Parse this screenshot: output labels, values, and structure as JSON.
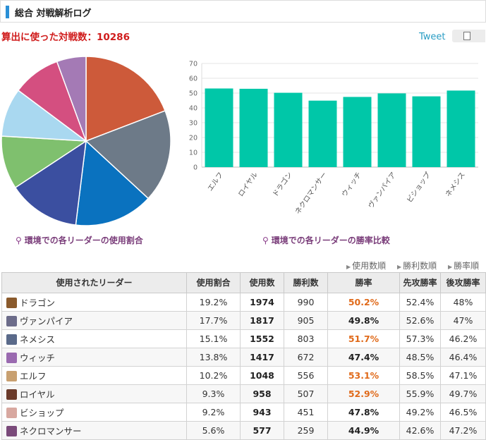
{
  "header": {
    "title": "総合 対戦解析ログ"
  },
  "battle_count_label": "算出に使った対戦数：10286",
  "social": {
    "tweet": "Tweet"
  },
  "pie_caption": "環境での各リーダーの使用割合",
  "bar_caption": "環境での各リーダーの勝率比較",
  "sort": [
    "使用数順",
    "勝利数順",
    "勝率順"
  ],
  "table": {
    "headers": [
      "使用されたリーダー",
      "使用割合",
      "使用数",
      "勝利数",
      "勝率",
      "先攻勝率",
      "後攻勝率"
    ],
    "rows": [
      {
        "leader": "ドラゴン",
        "share": "19.2%",
        "count": "1974",
        "wins": "990",
        "rate": "50.2%",
        "hi": true,
        "first": "52.4%",
        "second": "48%",
        "color": "#8a5a2c"
      },
      {
        "leader": "ヴァンパイア",
        "share": "17.7%",
        "count": "1817",
        "wins": "905",
        "rate": "49.8%",
        "hi": false,
        "first": "52.6%",
        "second": "47%",
        "color": "#6c6c8a"
      },
      {
        "leader": "ネメシス",
        "share": "15.1%",
        "count": "1552",
        "wins": "803",
        "rate": "51.7%",
        "hi": true,
        "first": "57.3%",
        "second": "46.2%",
        "color": "#5a6a8a"
      },
      {
        "leader": "ウィッチ",
        "share": "13.8%",
        "count": "1417",
        "wins": "672",
        "rate": "47.4%",
        "hi": false,
        "first": "48.5%",
        "second": "46.4%",
        "color": "#9a6ab0"
      },
      {
        "leader": "エルフ",
        "share": "10.2%",
        "count": "1048",
        "wins": "556",
        "rate": "53.1%",
        "hi": true,
        "first": "58.5%",
        "second": "47.1%",
        "color": "#c8a070"
      },
      {
        "leader": "ロイヤル",
        "share": "9.3%",
        "count": "958",
        "wins": "507",
        "rate": "52.9%",
        "hi": true,
        "first": "55.9%",
        "second": "49.7%",
        "color": "#6a3a2a"
      },
      {
        "leader": "ビショップ",
        "share": "9.2%",
        "count": "943",
        "wins": "451",
        "rate": "47.8%",
        "hi": false,
        "first": "49.2%",
        "second": "46.5%",
        "color": "#d8a8a0"
      },
      {
        "leader": "ネクロマンサー",
        "share": "5.6%",
        "count": "577",
        "wins": "259",
        "rate": "44.9%",
        "hi": false,
        "first": "42.6%",
        "second": "47.2%",
        "color": "#7a4a7a"
      }
    ]
  },
  "chart_data": [
    {
      "type": "pie",
      "categories": [
        "ドラゴン",
        "ヴァンパイア",
        "ネメシス",
        "ウィッチ",
        "エルフ",
        "ロイヤル",
        "ビショップ",
        "ネクロマンサー"
      ],
      "values": [
        19.2,
        17.7,
        15.1,
        13.8,
        10.2,
        9.3,
        9.2,
        5.6
      ],
      "colors": [
        "#cd5a3a",
        "#6d7a88",
        "#0a72bf",
        "#3b4fa0",
        "#7fc06e",
        "#a9d8f0",
        "#d44f80",
        "#a47ab5"
      ]
    },
    {
      "type": "bar",
      "categories": [
        "エルフ",
        "ロイヤル",
        "ドラゴン",
        "ネクロマンサー",
        "ウィッチ",
        "ヴァンパイア",
        "ビショップ",
        "ネメシス"
      ],
      "values": [
        53.1,
        52.9,
        50.2,
        44.9,
        47.4,
        49.8,
        47.8,
        51.7
      ],
      "ylim": [
        0,
        70
      ],
      "yticks": [
        0,
        10,
        20,
        30,
        40,
        50,
        60,
        70
      ],
      "grid": true,
      "color": "#00c7a8"
    }
  ]
}
